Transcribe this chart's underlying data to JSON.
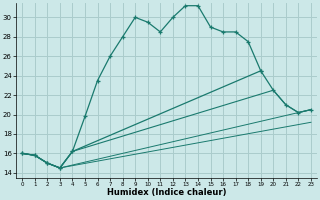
{
  "xlabel": "Humidex (Indice chaleur)",
  "bg_color": "#cce8e8",
  "grid_color": "#aacccc",
  "line_color": "#1a7a6e",
  "xlim": [
    -0.5,
    23.5
  ],
  "ylim": [
    13.5,
    31.5
  ],
  "yticks": [
    14,
    16,
    18,
    20,
    22,
    24,
    26,
    28,
    30
  ],
  "xticks": [
    0,
    1,
    2,
    3,
    4,
    5,
    6,
    7,
    8,
    9,
    10,
    11,
    12,
    13,
    14,
    15,
    16,
    17,
    18,
    19,
    20,
    21,
    22,
    23
  ],
  "line1_x": [
    0,
    1,
    2,
    3,
    4,
    5,
    6,
    7,
    8,
    9,
    10,
    11,
    12,
    13,
    14,
    15,
    16,
    17,
    18,
    19
  ],
  "line1_y": [
    16.0,
    15.8,
    15.0,
    14.5,
    16.2,
    19.8,
    23.5,
    26.0,
    28.0,
    30.0,
    29.5,
    28.5,
    30.0,
    31.2,
    31.2,
    29.0,
    28.5,
    28.5,
    27.5,
    24.5
  ],
  "line2_x": [
    0,
    1,
    2,
    3,
    4,
    19,
    20,
    21,
    22,
    23
  ],
  "line2_y": [
    16.0,
    15.8,
    15.0,
    14.5,
    16.2,
    24.5,
    22.5,
    21.0,
    20.2,
    20.5
  ],
  "line3_x": [
    0,
    1,
    2,
    3,
    4,
    20,
    21,
    22,
    23
  ],
  "line3_y": [
    16.0,
    15.8,
    15.0,
    14.5,
    16.2,
    22.5,
    21.0,
    20.2,
    20.5
  ],
  "line4_x": [
    0,
    1,
    2,
    3,
    23
  ],
  "line4_y": [
    16.0,
    15.8,
    15.0,
    14.5,
    20.5
  ],
  "line5_x": [
    0,
    1,
    2,
    3,
    23
  ],
  "line5_y": [
    16.0,
    15.8,
    15.0,
    14.5,
    19.2
  ]
}
